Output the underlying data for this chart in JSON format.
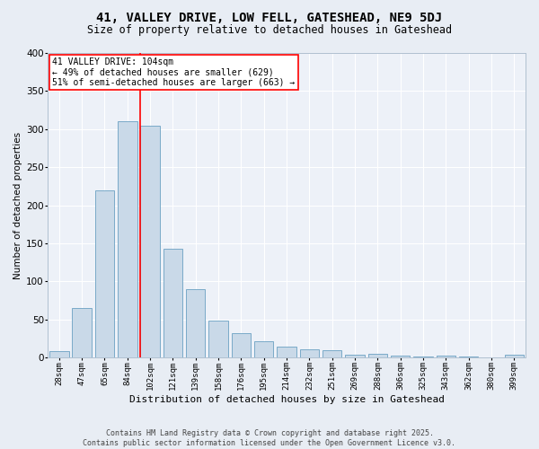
{
  "title1": "41, VALLEY DRIVE, LOW FELL, GATESHEAD, NE9 5DJ",
  "title2": "Size of property relative to detached houses in Gateshead",
  "xlabel": "Distribution of detached houses by size in Gateshead",
  "ylabel": "Number of detached properties",
  "categories": [
    "28sqm",
    "47sqm",
    "65sqm",
    "84sqm",
    "102sqm",
    "121sqm",
    "139sqm",
    "158sqm",
    "176sqm",
    "195sqm",
    "214sqm",
    "232sqm",
    "251sqm",
    "269sqm",
    "288sqm",
    "306sqm",
    "325sqm",
    "343sqm",
    "362sqm",
    "380sqm",
    "399sqm"
  ],
  "values": [
    8,
    65,
    220,
    310,
    305,
    143,
    90,
    48,
    32,
    21,
    14,
    11,
    10,
    3,
    5,
    2,
    1,
    2,
    1,
    0,
    3
  ],
  "bar_color": "#c9d9e8",
  "bar_edge_color": "#7aaac8",
  "highlight_line_index": 4,
  "annotation_text": "41 VALLEY DRIVE: 104sqm\n← 49% of detached houses are smaller (629)\n51% of semi-detached houses are larger (663) →",
  "annotation_box_color": "white",
  "annotation_box_edge_color": "red",
  "highlight_line_color": "red",
  "ylim": [
    0,
    400
  ],
  "yticks": [
    0,
    50,
    100,
    150,
    200,
    250,
    300,
    350,
    400
  ],
  "footer1": "Contains HM Land Registry data © Crown copyright and database right 2025.",
  "footer2": "Contains public sector information licensed under the Open Government Licence v3.0.",
  "background_color": "#e8edf4",
  "plot_background_color": "#edf1f8",
  "grid_color": "white",
  "title1_fontsize": 10,
  "title2_fontsize": 8.5,
  "xlabel_fontsize": 8,
  "ylabel_fontsize": 7.5,
  "xtick_fontsize": 6.5,
  "ytick_fontsize": 7.5,
  "annotation_fontsize": 7,
  "footer_fontsize": 6
}
